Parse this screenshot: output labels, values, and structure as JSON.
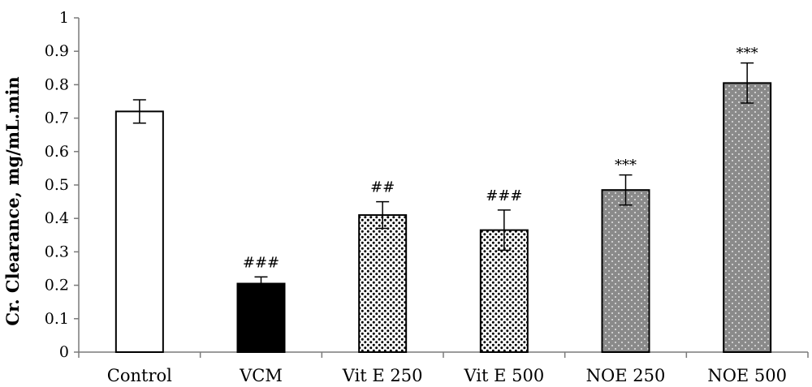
{
  "chart_data": {
    "type": "bar",
    "ylabel": "Cr. Clearance, mg/mL.min",
    "xlabel": "",
    "ylim": [
      0,
      1
    ],
    "yticks": [
      0,
      0.1,
      0.2,
      0.3,
      0.4,
      0.5,
      0.6,
      0.7,
      0.8,
      0.9,
      1
    ],
    "ytick_labels": [
      "0",
      "0.1",
      "0.2",
      "0.3",
      "0.4",
      "0.5",
      "0.6",
      "0.7",
      "0.8",
      "0.9",
      "1"
    ],
    "categories": [
      "Control",
      "VCM",
      "Vit E 250",
      "Vit E 500",
      "NOE 250",
      "NOE 500"
    ],
    "values": [
      0.72,
      0.205,
      0.41,
      0.365,
      0.485,
      0.805
    ],
    "error": [
      0.035,
      0.02,
      0.04,
      0.06,
      0.045,
      0.06
    ],
    "annotations": [
      "",
      "###",
      "##",
      "###",
      "***",
      "***"
    ],
    "fills": [
      "white",
      "black",
      "dense-dots",
      "dense-dots",
      "gray-dots",
      "gray-dots"
    ],
    "colors": {
      "gray": "#8a8a8a",
      "black": "#000000",
      "white": "#ffffff"
    },
    "grid": false,
    "legend": "none"
  }
}
